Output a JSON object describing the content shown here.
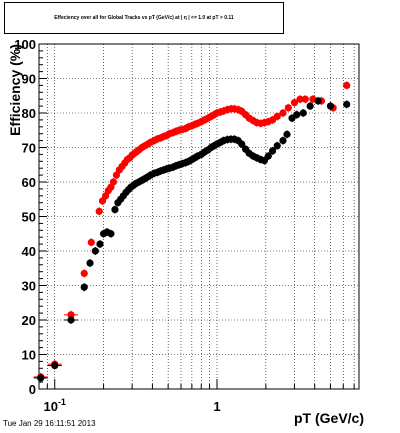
{
  "page": {
    "timestamp": "Tue Jan 29 16:11:51 2013"
  },
  "colors": {
    "red_series": "#ff0000",
    "black_series": "#000000",
    "grid": "#000000",
    "background": "#ffffff"
  },
  "chart_data": {
    "type": "scatter",
    "title": "Effeciency over all for Global Tracks vs pT (GeV/c) at | η | <= 1.0 at pT > 0.11",
    "xlabel": "pT (GeV/c)",
    "ylabel": "Efficiency (%)",
    "xscale": "log",
    "xlim": [
      0.08,
      7.5
    ],
    "ylim": [
      0,
      100
    ],
    "grid": true,
    "legend": "none",
    "y_ticks": [
      0,
      10,
      20,
      30,
      40,
      50,
      60,
      70,
      80,
      90,
      100
    ],
    "y_tick_labels": [
      "0",
      "10",
      "20",
      "30",
      "40",
      "50",
      "60",
      "70",
      "80",
      "90",
      "100"
    ],
    "x_major_ticks": [
      0.1,
      1
    ],
    "x_tick_labels": [
      {
        "base": "10",
        "exp": "-1"
      },
      {
        "base": "1",
        "exp": ""
      }
    ],
    "series": [
      {
        "color": "#ff0000",
        "points": [
          [
            0.082,
            3.5
          ],
          [
            0.1,
            7.2
          ],
          [
            0.126,
            21.5
          ],
          [
            0.152,
            33.5
          ],
          [
            0.168,
            42.5
          ],
          [
            0.188,
            51.5
          ],
          [
            0.197,
            54.5
          ],
          [
            0.206,
            56
          ],
          [
            0.214,
            57.5
          ],
          [
            0.222,
            58.5
          ],
          [
            0.23,
            60
          ],
          [
            0.24,
            62
          ],
          [
            0.25,
            63.5
          ],
          [
            0.26,
            64.5
          ],
          [
            0.27,
            65.5
          ],
          [
            0.28,
            66.5
          ],
          [
            0.29,
            67
          ],
          [
            0.3,
            67.8
          ],
          [
            0.31,
            68.3
          ],
          [
            0.32,
            68.8
          ],
          [
            0.33,
            69.3
          ],
          [
            0.345,
            70
          ],
          [
            0.36,
            70.5
          ],
          [
            0.375,
            71
          ],
          [
            0.39,
            71.5
          ],
          [
            0.41,
            72
          ],
          [
            0.43,
            72.5
          ],
          [
            0.45,
            72.8
          ],
          [
            0.47,
            73.2
          ],
          [
            0.49,
            73.5
          ],
          [
            0.51,
            74
          ],
          [
            0.535,
            74.3
          ],
          [
            0.56,
            74.7
          ],
          [
            0.585,
            75
          ],
          [
            0.61,
            75.2
          ],
          [
            0.64,
            75.5
          ],
          [
            0.67,
            76
          ],
          [
            0.7,
            76.3
          ],
          [
            0.73,
            76.7
          ],
          [
            0.76,
            77
          ],
          [
            0.8,
            77.5
          ],
          [
            0.84,
            78
          ],
          [
            0.88,
            78.5
          ],
          [
            0.92,
            79
          ],
          [
            0.96,
            79.5
          ],
          [
            1.0,
            80
          ],
          [
            1.05,
            80.3
          ],
          [
            1.1,
            80.6
          ],
          [
            1.16,
            81
          ],
          [
            1.22,
            81.2
          ],
          [
            1.28,
            81.2
          ],
          [
            1.35,
            81
          ],
          [
            1.42,
            80.5
          ],
          [
            1.5,
            79.5
          ],
          [
            1.58,
            78.5
          ],
          [
            1.67,
            77.8
          ],
          [
            1.76,
            77.2
          ],
          [
            1.86,
            77
          ],
          [
            1.96,
            77.2
          ],
          [
            2.07,
            77.5
          ],
          [
            2.2,
            78
          ],
          [
            2.35,
            79
          ],
          [
            2.55,
            80
          ],
          [
            2.75,
            81.5
          ],
          [
            3.0,
            83
          ],
          [
            3.25,
            84
          ],
          [
            3.5,
            84
          ],
          [
            3.9,
            84
          ],
          [
            4.4,
            83.5
          ],
          [
            5.2,
            81.5
          ],
          [
            6.3,
            88
          ]
        ]
      },
      {
        "color": "#000000",
        "points": [
          [
            0.082,
            3.2
          ],
          [
            0.1,
            6.8
          ],
          [
            0.126,
            20
          ],
          [
            0.152,
            29.5
          ],
          [
            0.165,
            36.5
          ],
          [
            0.178,
            40
          ],
          [
            0.19,
            42
          ],
          [
            0.2,
            45
          ],
          [
            0.21,
            45.5
          ],
          [
            0.222,
            45
          ],
          [
            0.235,
            52
          ],
          [
            0.245,
            54
          ],
          [
            0.255,
            55
          ],
          [
            0.265,
            56
          ],
          [
            0.275,
            57
          ],
          [
            0.285,
            57.8
          ],
          [
            0.295,
            58.5
          ],
          [
            0.305,
            59
          ],
          [
            0.315,
            59.5
          ],
          [
            0.33,
            60
          ],
          [
            0.345,
            60.5
          ],
          [
            0.36,
            61
          ],
          [
            0.375,
            61.5
          ],
          [
            0.39,
            62
          ],
          [
            0.41,
            62.5
          ],
          [
            0.43,
            62.8
          ],
          [
            0.45,
            63.2
          ],
          [
            0.47,
            63.5
          ],
          [
            0.49,
            63.8
          ],
          [
            0.51,
            64
          ],
          [
            0.535,
            64.3
          ],
          [
            0.56,
            64.7
          ],
          [
            0.585,
            65
          ],
          [
            0.61,
            65.3
          ],
          [
            0.64,
            65.6
          ],
          [
            0.67,
            66
          ],
          [
            0.7,
            66.5
          ],
          [
            0.73,
            67
          ],
          [
            0.76,
            67.5
          ],
          [
            0.8,
            68
          ],
          [
            0.84,
            68.7
          ],
          [
            0.88,
            69.3
          ],
          [
            0.92,
            70
          ],
          [
            0.96,
            70.5
          ],
          [
            1.0,
            71
          ],
          [
            1.05,
            71.5
          ],
          [
            1.1,
            72
          ],
          [
            1.16,
            72.3
          ],
          [
            1.22,
            72.4
          ],
          [
            1.28,
            72.4
          ],
          [
            1.35,
            72
          ],
          [
            1.42,
            71
          ],
          [
            1.5,
            69.5
          ],
          [
            1.58,
            68.3
          ],
          [
            1.67,
            67.5
          ],
          [
            1.76,
            67
          ],
          [
            1.86,
            66.5
          ],
          [
            1.96,
            66.2
          ],
          [
            2.07,
            67.5
          ],
          [
            2.2,
            69
          ],
          [
            2.35,
            70.5
          ],
          [
            2.55,
            72
          ],
          [
            2.7,
            73.8
          ],
          [
            2.9,
            78.5
          ],
          [
            3.1,
            79.5
          ],
          [
            3.4,
            80
          ],
          [
            3.75,
            82
          ],
          [
            4.2,
            83.5
          ],
          [
            5.0,
            82
          ],
          [
            6.3,
            82.5
          ]
        ]
      }
    ]
  }
}
